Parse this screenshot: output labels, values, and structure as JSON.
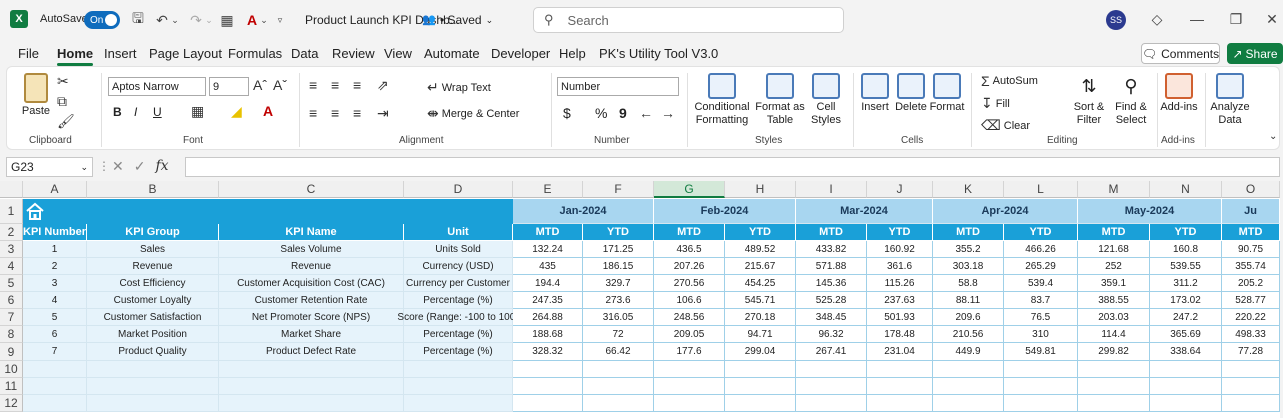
{
  "titlebar": {
    "autosave_label": "AutoSave",
    "toggle_label": "On",
    "doc_title": "Product Launch KPI Dashb...",
    "saved": "• Saved",
    "search_placeholder": "Search",
    "avatar": "SS"
  },
  "menu": [
    "File",
    "Home",
    "Insert",
    "Page Layout",
    "Formulas",
    "Data",
    "Review",
    "View",
    "Automate",
    "Developer",
    "Help",
    "PK's Utility Tool V3.0"
  ],
  "menu_active": "Home",
  "buttons": {
    "comments": "Comments",
    "share": "Share"
  },
  "ribbon": {
    "clipboard": {
      "paste": "Paste",
      "label": "Clipboard"
    },
    "font": {
      "name": "Aptos Narrow",
      "size": "9",
      "label": "Font",
      "bold": "B",
      "italic": "I",
      "underline": "U"
    },
    "alignment": {
      "wrap": "Wrap Text",
      "merge": "Merge & Center",
      "label": "Alignment"
    },
    "number": {
      "format": "Number",
      "currency": "$",
      "percent": "%",
      "comma": "9",
      "label": "Number"
    },
    "styles": {
      "cond1": "Conditional",
      "cond2": "Formatting",
      "fmt1": "Format as",
      "fmt2": "Table",
      "cell1": "Cell",
      "cell2": "Styles",
      "label": "Styles"
    },
    "cells": {
      "insert": "Insert",
      "delete": "Delete",
      "format": "Format",
      "label": "Cells"
    },
    "editing": {
      "autosum": "AutoSum",
      "fill": "Fill",
      "clear": "Clear",
      "sort1": "Sort &",
      "sort2": "Filter",
      "find1": "Find &",
      "find2": "Select",
      "label": "Editing"
    },
    "addins": {
      "btn": "Add-ins",
      "label": "Add-ins"
    },
    "analyze": {
      "l1": "Analyze",
      "l2": "Data"
    }
  },
  "namebox": "G23",
  "columns": [
    "A",
    "B",
    "C",
    "D",
    "E",
    "F",
    "G",
    "H",
    "I",
    "J",
    "K",
    "L",
    "M",
    "N",
    "O"
  ],
  "rows": [
    "1",
    "2",
    "3",
    "4",
    "5",
    "6",
    "7",
    "8",
    "9",
    "10",
    "11",
    "12"
  ],
  "months": [
    "Jan-2024",
    "Feb-2024",
    "Mar-2024",
    "Apr-2024",
    "May-2024",
    "Ju"
  ],
  "headers": [
    "KPI Number",
    "KPI Group",
    "KPI Name",
    "Unit"
  ],
  "sub_headers": [
    "MTD",
    "YTD",
    "MTD",
    "YTD",
    "MTD",
    "YTD",
    "MTD",
    "YTD",
    "MTD",
    "YTD",
    "MTD"
  ],
  "table": [
    {
      "num": "1",
      "group": "Sales",
      "name": "Sales Volume",
      "unit": "Units Sold",
      "vals": [
        "132.24",
        "171.25",
        "436.5",
        "489.52",
        "433.82",
        "160.92",
        "355.2",
        "466.26",
        "121.68",
        "160.8",
        "90.75"
      ]
    },
    {
      "num": "2",
      "group": "Revenue",
      "name": "Revenue",
      "unit": "Currency (USD)",
      "vals": [
        "435",
        "186.15",
        "207.26",
        "215.67",
        "571.88",
        "361.6",
        "303.18",
        "265.29",
        "252",
        "539.55",
        "355.74"
      ]
    },
    {
      "num": "3",
      "group": "Cost Efficiency",
      "name": "Customer Acquisition Cost (CAC)",
      "unit": "Currency per Customer",
      "vals": [
        "194.4",
        "329.7",
        "270.56",
        "454.25",
        "145.36",
        "115.26",
        "58.8",
        "539.4",
        "359.1",
        "311.2",
        "205.2"
      ]
    },
    {
      "num": "4",
      "group": "Customer Loyalty",
      "name": "Customer Retention Rate",
      "unit": "Percentage (%)",
      "vals": [
        "247.35",
        "273.6",
        "106.6",
        "545.71",
        "525.28",
        "237.63",
        "88.11",
        "83.7",
        "388.55",
        "173.02",
        "528.77"
      ]
    },
    {
      "num": "5",
      "group": "Customer Satisfaction",
      "name": "Net Promoter Score (NPS)",
      "unit": "Score (Range: -100 to 100)",
      "vals": [
        "264.88",
        "316.05",
        "248.56",
        "270.18",
        "348.45",
        "501.93",
        "209.6",
        "76.5",
        "203.03",
        "247.2",
        "220.22"
      ]
    },
    {
      "num": "6",
      "group": "Market Position",
      "name": "Market Share",
      "unit": "Percentage (%)",
      "vals": [
        "188.68",
        "72",
        "209.05",
        "94.71",
        "96.32",
        "178.48",
        "210.56",
        "310",
        "114.4",
        "365.69",
        "498.33"
      ]
    },
    {
      "num": "7",
      "group": "Product Quality",
      "name": "Product Defect Rate",
      "unit": "Percentage (%)",
      "vals": [
        "328.32",
        "66.42",
        "177.6",
        "299.04",
        "267.41",
        "231.04",
        "449.9",
        "549.81",
        "299.82",
        "338.64",
        "77.28"
      ]
    }
  ]
}
